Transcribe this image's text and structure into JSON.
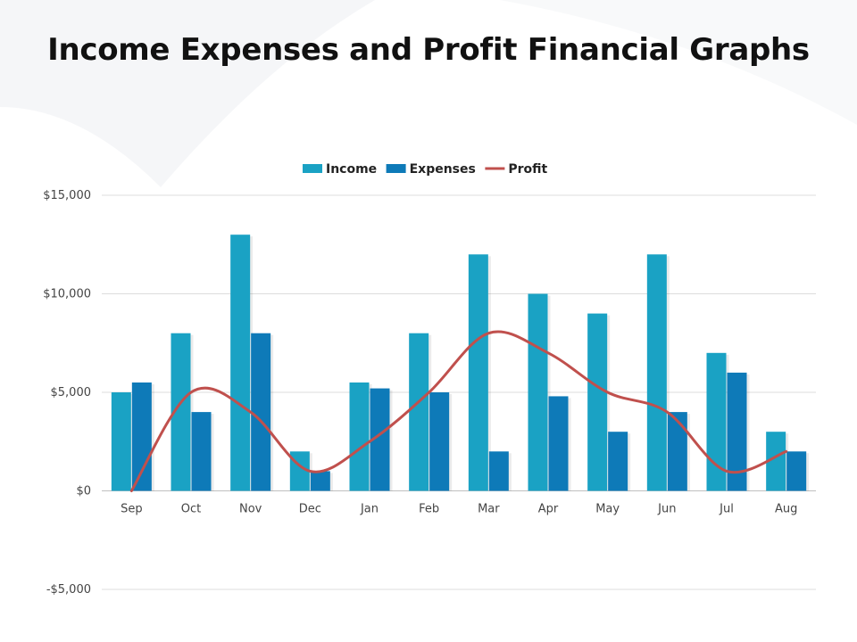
{
  "slide": {
    "title": "Income Expenses and Profit Financial Graphs"
  },
  "chart_data": {
    "type": "bar",
    "categories": [
      "Sep",
      "Oct",
      "Nov",
      "Dec",
      "Jan",
      "Feb",
      "Mar",
      "Apr",
      "May",
      "Jun",
      "Jul",
      "Aug"
    ],
    "series": [
      {
        "name": "Income",
        "type": "bar",
        "color": "#1AA2C4",
        "values": [
          5000,
          8000,
          13000,
          2000,
          5500,
          8000,
          12000,
          10000,
          9000,
          12000,
          7000,
          3000
        ]
      },
      {
        "name": "Expenses",
        "type": "bar",
        "color": "#0E7AB8",
        "values": [
          5500,
          4000,
          8000,
          1000,
          5200,
          5000,
          2000,
          4800,
          3000,
          4000,
          6000,
          2000
        ]
      },
      {
        "name": "Profit",
        "type": "line",
        "smooth": true,
        "color": "#C0504D",
        "values": [
          0,
          5000,
          4000,
          1000,
          2500,
          5000,
          8000,
          7000,
          5000,
          4000,
          1000,
          2000
        ]
      }
    ],
    "ylim": [
      -5000,
      15000
    ],
    "yticks": [
      -5000,
      0,
      5000,
      10000,
      15000
    ],
    "ytick_labels": [
      "-$5,000",
      "$0",
      "$5,000",
      "$10,000",
      "$15,000"
    ],
    "grid": true,
    "legend": "top-center"
  }
}
